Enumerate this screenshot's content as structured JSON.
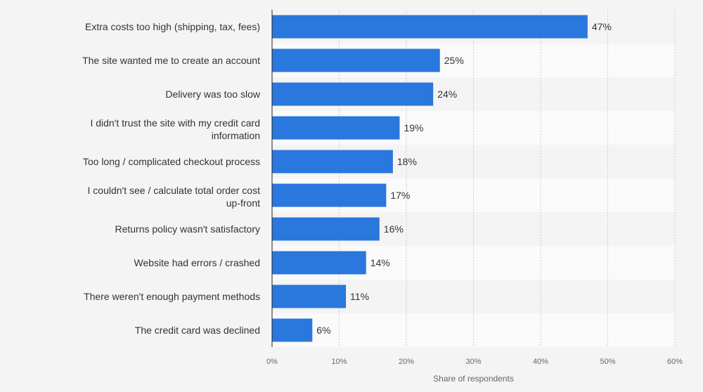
{
  "chart_data": {
    "type": "bar",
    "orientation": "horizontal",
    "categories": [
      "Extra costs too high (shipping, tax, fees)",
      "The site wanted me to create an account",
      "Delivery was too slow",
      "I didn't trust the site with my credit card information",
      "Too long / complicated checkout process",
      "I couldn't see / calculate total order cost up-front",
      "Returns policy wasn't satisfactory",
      "Website had errors / crashed",
      "There weren't enough payment methods",
      "The credit card was declined"
    ],
    "values": [
      47,
      25,
      24,
      19,
      18,
      17,
      16,
      14,
      11,
      6
    ],
    "value_labels": [
      "47%",
      "25%",
      "24%",
      "19%",
      "18%",
      "17%",
      "16%",
      "14%",
      "11%",
      "6%"
    ],
    "xlim": [
      0,
      60
    ],
    "xticks": [
      0,
      10,
      20,
      30,
      40,
      50,
      60
    ],
    "xtick_labels": [
      "0%",
      "10%",
      "20%",
      "30%",
      "40%",
      "50%",
      "60%"
    ],
    "xlabel": "Share of respondents",
    "ylabel": "",
    "grid": true,
    "bar_color": "#2a77dd"
  }
}
